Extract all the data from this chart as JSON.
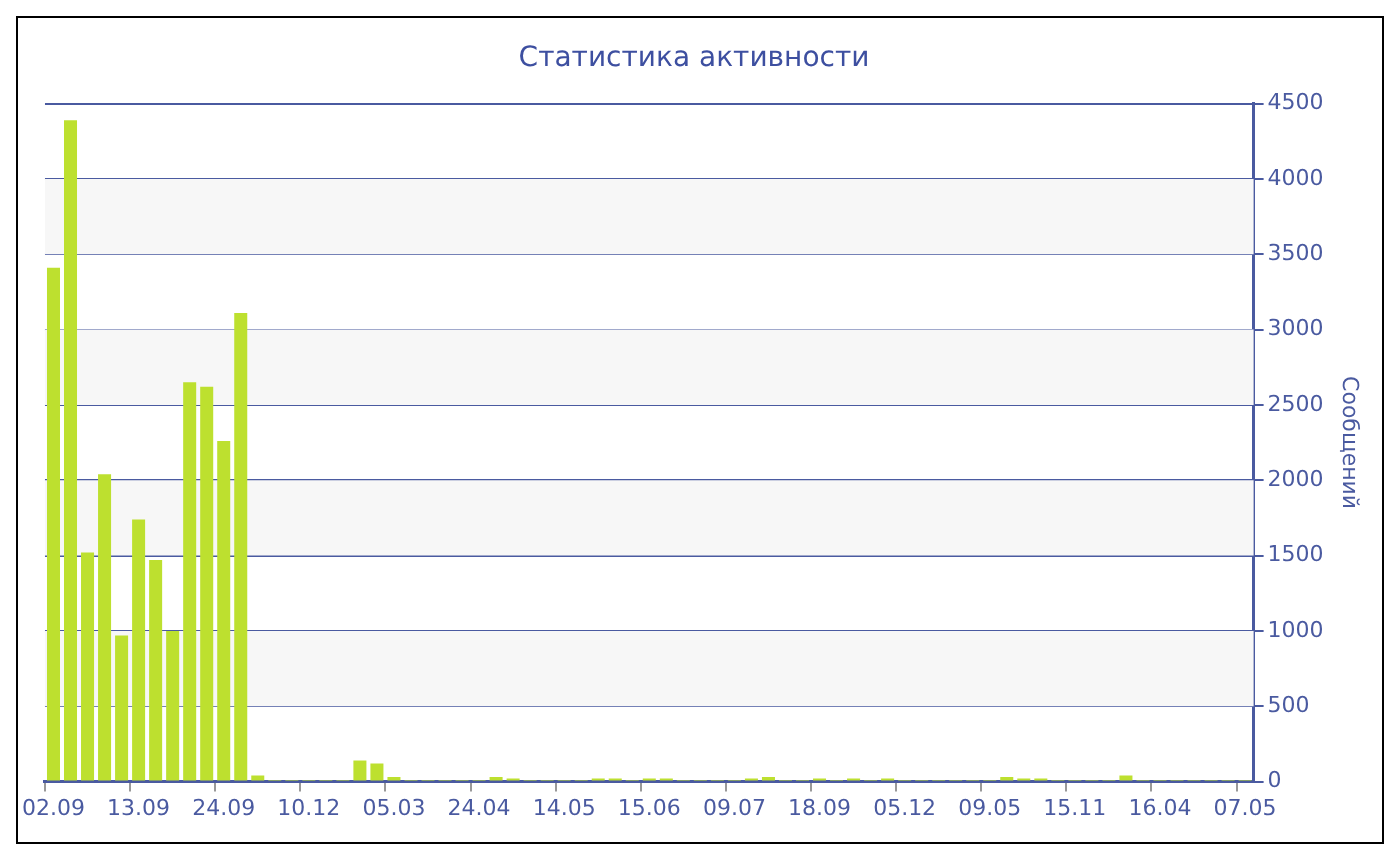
{
  "chart_data": {
    "type": "bar",
    "title": "Статистика активности",
    "y2label": "Сообщений",
    "categories": [
      "02.09",
      null,
      null,
      null,
      null,
      "13.09",
      null,
      null,
      null,
      null,
      "24.09",
      null,
      null,
      null,
      null,
      "10.12",
      null,
      null,
      null,
      null,
      "05.03",
      null,
      null,
      null,
      null,
      "24.04",
      null,
      null,
      null,
      null,
      "14.05",
      null,
      null,
      null,
      null,
      "15.06",
      null,
      null,
      null,
      null,
      "09.07",
      null,
      null,
      null,
      null,
      "18.09",
      null,
      null,
      null,
      null,
      "05.12",
      null,
      null,
      null,
      null,
      "09.05",
      null,
      null,
      null,
      null,
      "15.11",
      null,
      null,
      null,
      null,
      "16.04",
      null,
      null,
      null,
      null,
      "07.05"
    ],
    "series": [
      {
        "color": "#bde02f",
        "axis": "y2",
        "values": [
          3410,
          4390,
          1520,
          2040,
          970,
          1740,
          1470,
          1000,
          2650,
          2620,
          2260,
          3110,
          40,
          10,
          10,
          10,
          10,
          10,
          140,
          120,
          30,
          10,
          10,
          10,
          10,
          10,
          30,
          20,
          10,
          10,
          10,
          10,
          20,
          20,
          10,
          20,
          20,
          10,
          10,
          10,
          10,
          20,
          30,
          10,
          10,
          20,
          10,
          20,
          10,
          20,
          10,
          10,
          10,
          10,
          10,
          10,
          30,
          20,
          20,
          10,
          10,
          10,
          10,
          40,
          10,
          10,
          10,
          10,
          10,
          10,
          10
        ]
      }
    ],
    "y2lim": [
      0,
      4500
    ],
    "y2ticks": [
      0,
      500,
      1000,
      1500,
      2000,
      2500,
      3000,
      3500,
      4000,
      4500
    ],
    "grid": "y",
    "legend": false
  }
}
